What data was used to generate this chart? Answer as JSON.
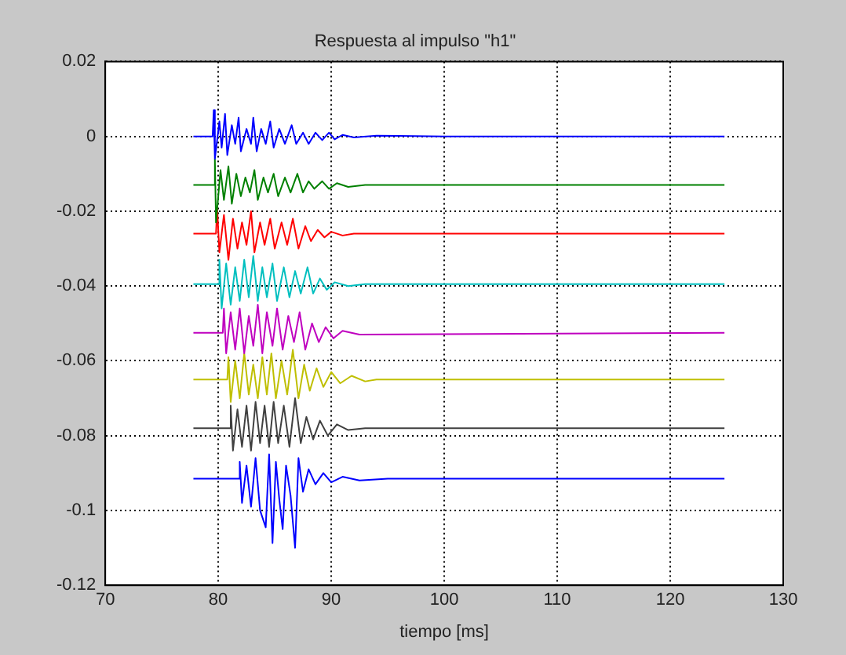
{
  "chart_data": {
    "type": "line",
    "title": "Respuesta al impulso \"h1\"",
    "xlabel": "tiempo [ms]",
    "xlim": [
      70,
      130
    ],
    "xticks": [
      70,
      80,
      90,
      100,
      110,
      120,
      130
    ],
    "ylim": [
      -0.12,
      0.02
    ],
    "yticks": [
      -0.12,
      -0.1,
      -0.08,
      -0.06,
      -0.04,
      -0.02,
      0,
      0.02
    ],
    "grid": true,
    "legend": false,
    "marker": "none",
    "line_style": "solid",
    "series": [
      {
        "color": "#0000ff",
        "x": [
          77.8,
          79.5,
          79.6,
          79.7,
          80.1,
          80.3,
          80.6,
          80.8,
          81.2,
          81.5,
          81.8,
          82.0,
          82.5,
          82.9,
          83.1,
          83.4,
          83.8,
          84.2,
          84.6,
          84.9,
          85.4,
          85.9,
          86.5,
          86.9,
          87.5,
          88.0,
          88.6,
          89.2,
          89.8,
          90.3,
          91,
          92,
          94,
          100,
          124.8
        ],
        "values": [
          0,
          0,
          0.007,
          -0.006,
          0.004,
          -0.003,
          0.006,
          -0.005,
          0.003,
          -0.002,
          0.005,
          -0.004,
          0.002,
          -0.002,
          0.005,
          -0.004,
          0.002,
          -0.002,
          0.004,
          -0.003,
          0.002,
          -0.002,
          0.003,
          -0.002,
          0.001,
          -0.002,
          0.001,
          -0.001,
          0.001,
          -0.0008,
          0.0004,
          -0.0003,
          0.0002,
          0,
          0
        ]
      },
      {
        "color": "#008000",
        "x": [
          77.8,
          79.6,
          79.7,
          79.8,
          80.2,
          80.5,
          80.9,
          81.2,
          81.6,
          82.0,
          82.4,
          82.8,
          83.2,
          83.5,
          84.0,
          84.4,
          84.9,
          85.3,
          85.9,
          86.4,
          87.0,
          87.5,
          88.0,
          88.5,
          89.2,
          89.8,
          90.5,
          91.5,
          93,
          124.8
        ],
        "values": [
          -0.013,
          -0.013,
          -0.006,
          -0.023,
          -0.009,
          -0.017,
          -0.008,
          -0.018,
          -0.01,
          -0.016,
          -0.011,
          -0.015,
          -0.009,
          -0.017,
          -0.011,
          -0.015,
          -0.01,
          -0.016,
          -0.011,
          -0.015,
          -0.01,
          -0.015,
          -0.012,
          -0.014,
          -0.012,
          -0.014,
          -0.0125,
          -0.0135,
          -0.013,
          -0.013
        ]
      },
      {
        "color": "#ff0000",
        "x": [
          77.8,
          79.8,
          79.9,
          80.1,
          80.5,
          80.9,
          81.3,
          81.7,
          82.1,
          82.5,
          82.9,
          83.2,
          83.7,
          84.1,
          84.6,
          85.0,
          85.6,
          86.1,
          86.6,
          87.1,
          87.7,
          88.2,
          88.8,
          89.4,
          90.0,
          91,
          92,
          124.8
        ],
        "values": [
          -0.026,
          -0.026,
          -0.019,
          -0.031,
          -0.021,
          -0.033,
          -0.022,
          -0.03,
          -0.023,
          -0.029,
          -0.02,
          -0.031,
          -0.023,
          -0.029,
          -0.022,
          -0.03,
          -0.023,
          -0.029,
          -0.022,
          -0.03,
          -0.024,
          -0.028,
          -0.025,
          -0.027,
          -0.0255,
          -0.0265,
          -0.026,
          -0.026
        ]
      },
      {
        "color": "#00bfbf",
        "x": [
          77.8,
          80.0,
          80.1,
          80.3,
          80.7,
          81.1,
          81.5,
          81.9,
          82.3,
          82.7,
          83.1,
          83.5,
          83.9,
          84.3,
          84.8,
          85.2,
          85.8,
          86.3,
          86.8,
          87.3,
          87.9,
          88.4,
          89.0,
          89.6,
          90.3,
          91.5,
          93,
          124.8
        ],
        "values": [
          -0.0395,
          -0.0395,
          -0.033,
          -0.046,
          -0.034,
          -0.045,
          -0.035,
          -0.044,
          -0.033,
          -0.043,
          -0.032,
          -0.044,
          -0.035,
          -0.043,
          -0.034,
          -0.044,
          -0.035,
          -0.043,
          -0.036,
          -0.042,
          -0.035,
          -0.042,
          -0.038,
          -0.041,
          -0.039,
          -0.04,
          -0.0395,
          -0.0395
        ]
      },
      {
        "color": "#bf00bf",
        "x": [
          77.8,
          80.4,
          80.5,
          80.7,
          81.1,
          81.5,
          81.9,
          82.3,
          82.7,
          83.1,
          83.5,
          83.9,
          84.3,
          84.8,
          85.2,
          85.7,
          86.2,
          86.7,
          87.2,
          87.7,
          88.3,
          88.9,
          89.5,
          90.2,
          91,
          92.5,
          124.8
        ],
        "values": [
          -0.0525,
          -0.0525,
          -0.046,
          -0.058,
          -0.047,
          -0.057,
          -0.046,
          -0.058,
          -0.048,
          -0.056,
          -0.045,
          -0.058,
          -0.047,
          -0.056,
          -0.046,
          -0.057,
          -0.048,
          -0.055,
          -0.047,
          -0.057,
          -0.05,
          -0.055,
          -0.051,
          -0.054,
          -0.052,
          -0.053,
          -0.0525
        ]
      },
      {
        "color": "#bfbf00",
        "x": [
          77.8,
          80.8,
          80.9,
          81.1,
          81.5,
          81.9,
          82.3,
          82.7,
          83.1,
          83.5,
          83.9,
          84.3,
          84.7,
          85.1,
          85.6,
          86.1,
          86.6,
          87.1,
          87.6,
          88.1,
          88.7,
          89.3,
          90.0,
          90.8,
          91.8,
          93,
          94,
          124.8
        ],
        "values": [
          -0.065,
          -0.065,
          -0.059,
          -0.071,
          -0.06,
          -0.07,
          -0.058,
          -0.069,
          -0.061,
          -0.07,
          -0.059,
          -0.069,
          -0.058,
          -0.07,
          -0.06,
          -0.069,
          -0.057,
          -0.07,
          -0.061,
          -0.068,
          -0.062,
          -0.067,
          -0.063,
          -0.066,
          -0.064,
          -0.0655,
          -0.065,
          -0.065
        ]
      },
      {
        "color": "#404040",
        "x": [
          77.8,
          81.0,
          81.1,
          81.3,
          81.7,
          82.1,
          82.5,
          82.9,
          83.3,
          83.7,
          84.1,
          84.5,
          84.9,
          85.3,
          85.8,
          86.3,
          86.8,
          87.3,
          87.8,
          88.4,
          89.0,
          89.7,
          90.5,
          91.5,
          93,
          124.8
        ],
        "values": [
          -0.078,
          -0.078,
          -0.072,
          -0.084,
          -0.073,
          -0.083,
          -0.072,
          -0.084,
          -0.071,
          -0.082,
          -0.072,
          -0.083,
          -0.071,
          -0.082,
          -0.072,
          -0.083,
          -0.07,
          -0.082,
          -0.075,
          -0.081,
          -0.076,
          -0.08,
          -0.077,
          -0.0785,
          -0.078,
          -0.078
        ]
      },
      {
        "color": "#0000ff",
        "x": [
          77.8,
          81.8,
          81.9,
          82.1,
          82.5,
          82.9,
          83.3,
          83.7,
          84.2,
          84.5,
          84.8,
          85.1,
          85.4,
          85.7,
          86.0,
          86.4,
          86.8,
          87.1,
          87.5,
          88.0,
          88.6,
          89.3,
          90.0,
          91,
          92.5,
          95,
          124.8
        ],
        "values": [
          -0.0915,
          -0.0915,
          -0.087,
          -0.098,
          -0.088,
          -0.099,
          -0.086,
          -0.1,
          -0.1045,
          -0.085,
          -0.1087,
          -0.087,
          -0.097,
          -0.105,
          -0.088,
          -0.096,
          -0.11,
          -0.086,
          -0.095,
          -0.089,
          -0.093,
          -0.09,
          -0.0925,
          -0.091,
          -0.092,
          -0.0915,
          -0.0915
        ]
      }
    ]
  }
}
